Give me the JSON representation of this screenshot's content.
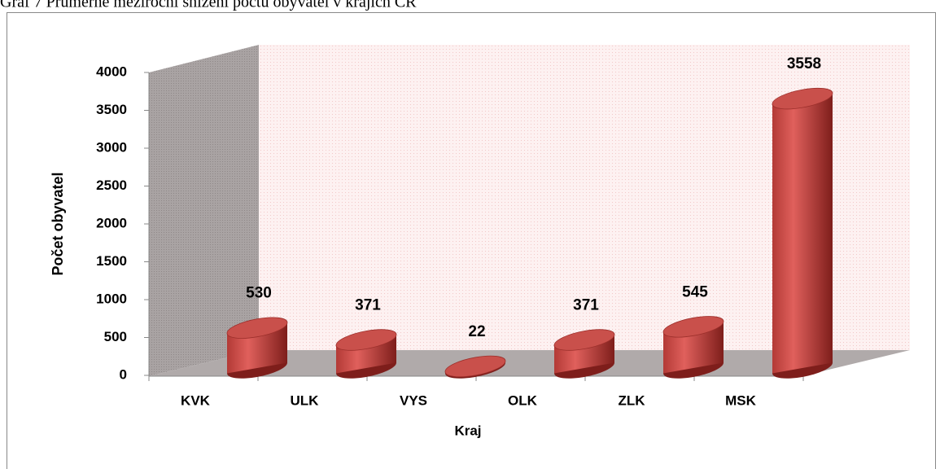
{
  "chart_data": {
    "type": "bar",
    "title": "Graf 7 Průměrné meziroční snížení počtu obyvatel v krajích ČR",
    "x_label": "Kraj",
    "y_label": "Počet obyvatel",
    "categories": [
      "KVK",
      "ULK",
      "VYS",
      "OLK",
      "ZLK",
      "MSK"
    ],
    "values": [
      530,
      371,
      22,
      371,
      545,
      3558
    ],
    "color": "#c0504d",
    "ylim": [
      0,
      4000
    ],
    "yticks": [
      0,
      500,
      1000,
      1500,
      2000,
      2500,
      3000,
      3500,
      4000
    ]
  }
}
